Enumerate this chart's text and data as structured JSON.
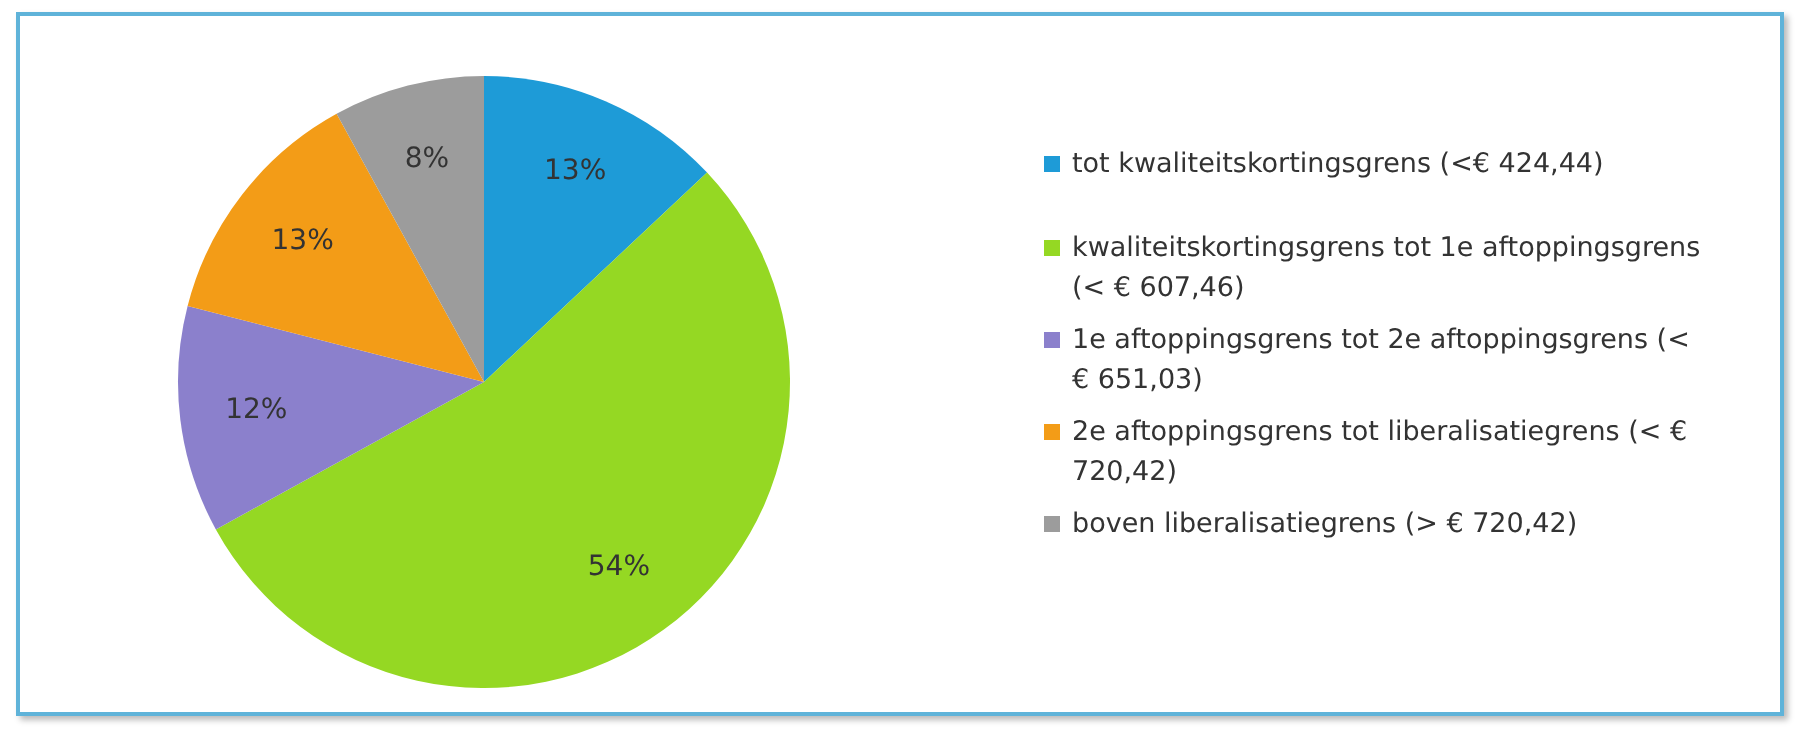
{
  "chart_data": {
    "type": "pie",
    "categories": [
      "tot kwaliteitskortingsgrens (<€ 424,44)",
      "kwaliteitskortingsgrens tot 1e aftoppingsgrens (< € 607,46)",
      "1e aftoppingsgrens tot 2e aftoppingsgrens (< € 651,03)",
      "2e aftoppingsgrens tot liberalisatiegrens (< € 720,42)",
      "boven liberalisatiegrens (> € 720,42)"
    ],
    "values": [
      13,
      54,
      12,
      13,
      8
    ],
    "value_labels": [
      "13%",
      "54%",
      "12%",
      "13%",
      "8%"
    ],
    "colors": [
      "#1e9bd7",
      "#95d823",
      "#8b80cc",
      "#f39c17",
      "#9c9c9c"
    ],
    "legend": "right"
  }
}
